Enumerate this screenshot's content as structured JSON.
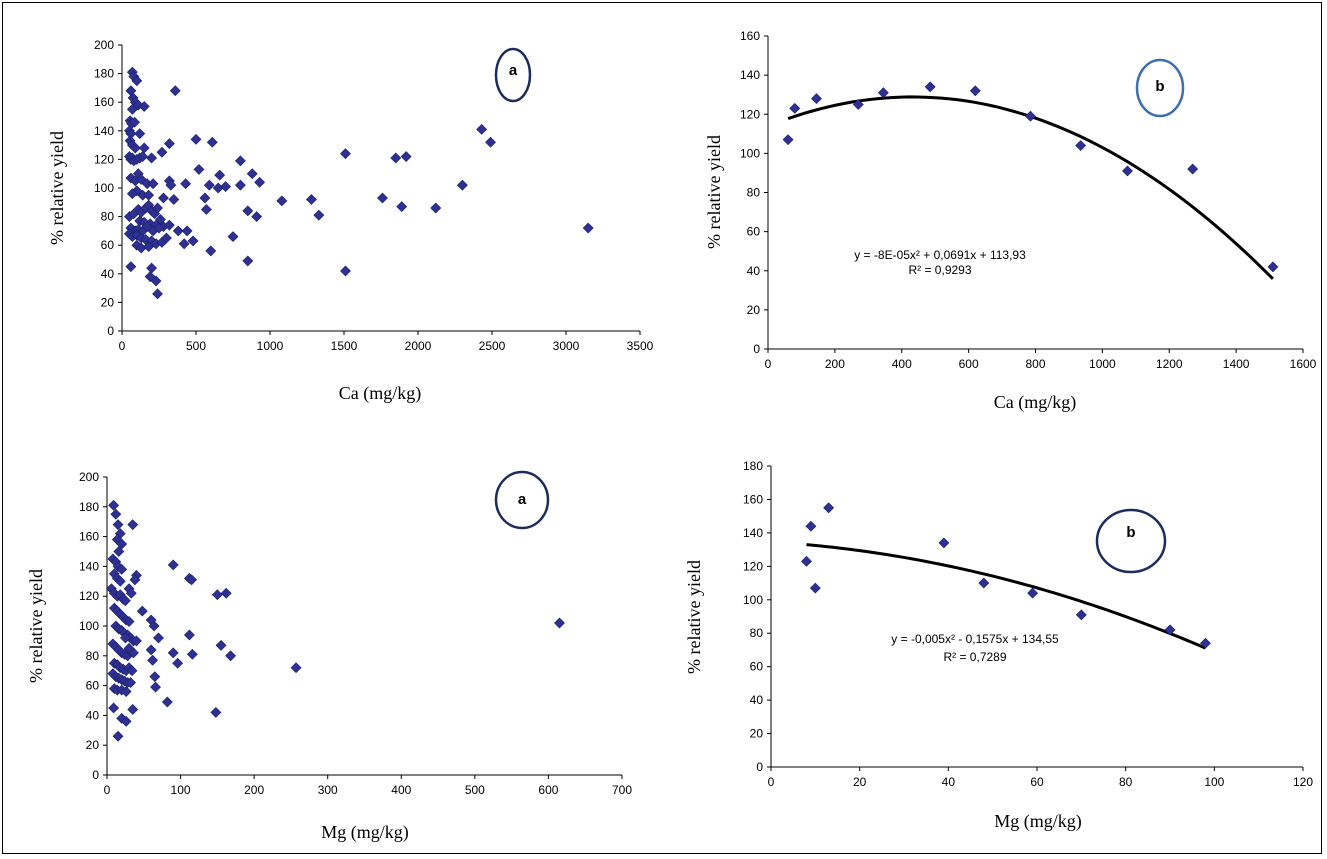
{
  "chart_data": [
    {
      "id": "ca-a",
      "type": "scatter",
      "badge": "a",
      "xlabel": "Ca (mg/kg)",
      "ylabel": "% relative yield",
      "xlim": [
        0,
        3500
      ],
      "ylim": [
        0,
        200
      ],
      "xticks": [
        0,
        500,
        1000,
        1500,
        2000,
        2500,
        3000,
        3500
      ],
      "yticks": [
        0,
        20,
        40,
        60,
        80,
        100,
        120,
        140,
        160,
        180,
        200
      ],
      "marker_color": "#2e3192",
      "points": [
        [
          70,
          181
        ],
        [
          80,
          178
        ],
        [
          100,
          175
        ],
        [
          60,
          168
        ],
        [
          75,
          163
        ],
        [
          90,
          160
        ],
        [
          110,
          158
        ],
        [
          70,
          155
        ],
        [
          150,
          157
        ],
        [
          360,
          168
        ],
        [
          55,
          147
        ],
        [
          65,
          145
        ],
        [
          85,
          146
        ],
        [
          50,
          140
        ],
        [
          60,
          138
        ],
        [
          120,
          138
        ],
        [
          55,
          133
        ],
        [
          70,
          130
        ],
        [
          90,
          128
        ],
        [
          150,
          128
        ],
        [
          50,
          122
        ],
        [
          60,
          120
        ],
        [
          70,
          121
        ],
        [
          80,
          119
        ],
        [
          100,
          120
        ],
        [
          120,
          121
        ],
        [
          140,
          122
        ],
        [
          200,
          121
        ],
        [
          270,
          125
        ],
        [
          320,
          131
        ],
        [
          500,
          134
        ],
        [
          610,
          132
        ],
        [
          110,
          110
        ],
        [
          60,
          107
        ],
        [
          90,
          105
        ],
        [
          130,
          106
        ],
        [
          170,
          103
        ],
        [
          210,
          103
        ],
        [
          320,
          105
        ],
        [
          330,
          102
        ],
        [
          430,
          103
        ],
        [
          590,
          102
        ],
        [
          650,
          100
        ],
        [
          700,
          101
        ],
        [
          520,
          113
        ],
        [
          800,
          119
        ],
        [
          880,
          110
        ],
        [
          930,
          104
        ],
        [
          100,
          98
        ],
        [
          70,
          96
        ],
        [
          140,
          95
        ],
        [
          180,
          95
        ],
        [
          280,
          93
        ],
        [
          350,
          92
        ],
        [
          560,
          93
        ],
        [
          660,
          109
        ],
        [
          1080,
          91
        ],
        [
          1280,
          92
        ],
        [
          1510,
          124
        ],
        [
          1850,
          121
        ],
        [
          1920,
          122
        ],
        [
          2430,
          141
        ],
        [
          2490,
          132
        ],
        [
          2300,
          102
        ],
        [
          1760,
          93
        ],
        [
          1890,
          87
        ],
        [
          2120,
          86
        ],
        [
          800,
          102
        ],
        [
          850,
          84
        ],
        [
          910,
          80
        ],
        [
          1330,
          81
        ],
        [
          570,
          85
        ],
        [
          50,
          80
        ],
        [
          80,
          82
        ],
        [
          110,
          85
        ],
        [
          130,
          83
        ],
        [
          160,
          86
        ],
        [
          180,
          88
        ],
        [
          200,
          84
        ],
        [
          220,
          82
        ],
        [
          240,
          86
        ],
        [
          260,
          78
        ],
        [
          120,
          77
        ],
        [
          150,
          76
        ],
        [
          190,
          75
        ],
        [
          230,
          74
        ],
        [
          280,
          73
        ],
        [
          320,
          74
        ],
        [
          60,
          72
        ],
        [
          90,
          70
        ],
        [
          110,
          71
        ],
        [
          140,
          70
        ],
        [
          170,
          73
        ],
        [
          210,
          70
        ],
        [
          250,
          72
        ],
        [
          380,
          70
        ],
        [
          440,
          70
        ],
        [
          50,
          68
        ],
        [
          70,
          66
        ],
        [
          100,
          67
        ],
        [
          130,
          65
        ],
        [
          160,
          64
        ],
        [
          200,
          63
        ],
        [
          230,
          61
        ],
        [
          270,
          62
        ],
        [
          300,
          65
        ],
        [
          420,
          61
        ],
        [
          480,
          63
        ],
        [
          750,
          66
        ],
        [
          100,
          60
        ],
        [
          130,
          58
        ],
        [
          180,
          59
        ],
        [
          600,
          56
        ],
        [
          850,
          49
        ],
        [
          60,
          45
        ],
        [
          200,
          44
        ],
        [
          190,
          38
        ],
        [
          230,
          35
        ],
        [
          240,
          26
        ],
        [
          1510,
          42
        ],
        [
          3150,
          72
        ]
      ]
    },
    {
      "id": "ca-b",
      "type": "scatter",
      "badge": "b",
      "xlabel": "Ca (mg/kg)",
      "ylabel": "% relative yield",
      "xlim": [
        0,
        1600
      ],
      "ylim": [
        0,
        160
      ],
      "xticks": [
        0,
        200,
        400,
        600,
        800,
        1000,
        1200,
        1400,
        1600
      ],
      "yticks": [
        0,
        20,
        40,
        60,
        80,
        100,
        120,
        140,
        160
      ],
      "marker_color": "#2e3192",
      "points": [
        [
          60,
          107
        ],
        [
          80,
          123
        ],
        [
          145,
          128
        ],
        [
          270,
          125
        ],
        [
          345,
          131
        ],
        [
          485,
          134
        ],
        [
          620,
          132
        ],
        [
          785,
          119
        ],
        [
          935,
          104
        ],
        [
          1075,
          91
        ],
        [
          1270,
          92
        ],
        [
          1510,
          42
        ]
      ],
      "trend": {
        "a": -8e-05,
        "b": 0.0691,
        "c": 113.93,
        "x0": 60,
        "x1": 1510
      },
      "equation": "y = -8E-05x² + 0,0691x + 113,93",
      "r2": "R² = 0,9293"
    },
    {
      "id": "mg-a",
      "type": "scatter",
      "badge": "a",
      "xlabel": "Mg (mg/kg)",
      "ylabel": "% relative yield",
      "xlim": [
        0,
        700
      ],
      "ylim": [
        0,
        200
      ],
      "xticks": [
        0,
        100,
        200,
        300,
        400,
        500,
        600,
        700
      ],
      "yticks": [
        0,
        20,
        40,
        60,
        80,
        100,
        120,
        140,
        160,
        180,
        200
      ],
      "marker_color": "#2e3192",
      "points": [
        [
          9,
          181
        ],
        [
          12,
          175
        ],
        [
          15,
          168
        ],
        [
          18,
          162
        ],
        [
          14,
          158
        ],
        [
          20,
          155
        ],
        [
          16,
          150
        ],
        [
          35,
          168
        ],
        [
          8,
          145
        ],
        [
          12,
          143
        ],
        [
          15,
          140
        ],
        [
          20,
          138
        ],
        [
          10,
          135
        ],
        [
          14,
          132
        ],
        [
          18,
          130
        ],
        [
          40,
          134
        ],
        [
          38,
          131
        ],
        [
          6,
          125
        ],
        [
          10,
          122
        ],
        [
          14,
          120
        ],
        [
          18,
          121
        ],
        [
          22,
          118
        ],
        [
          25,
          117
        ],
        [
          30,
          125
        ],
        [
          33,
          122
        ],
        [
          90,
          141
        ],
        [
          112,
          132
        ],
        [
          115,
          131
        ],
        [
          150,
          121
        ],
        [
          162,
          122
        ],
        [
          10,
          112
        ],
        [
          14,
          110
        ],
        [
          18,
          108
        ],
        [
          22,
          106
        ],
        [
          26,
          104
        ],
        [
          30,
          103
        ],
        [
          12,
          100
        ],
        [
          16,
          98
        ],
        [
          20,
          97
        ],
        [
          24,
          95
        ],
        [
          28,
          94
        ],
        [
          32,
          92
        ],
        [
          36,
          90
        ],
        [
          40,
          90
        ],
        [
          48,
          110
        ],
        [
          60,
          104
        ],
        [
          64,
          100
        ],
        [
          70,
          92
        ],
        [
          112,
          94
        ],
        [
          155,
          87
        ],
        [
          615,
          102
        ],
        [
          8,
          88
        ],
        [
          12,
          86
        ],
        [
          16,
          84
        ],
        [
          20,
          82
        ],
        [
          24,
          81
        ],
        [
          28,
          80
        ],
        [
          32,
          83
        ],
        [
          36,
          82
        ],
        [
          90,
          82
        ],
        [
          116,
          81
        ],
        [
          168,
          80
        ],
        [
          10,
          75
        ],
        [
          14,
          74
        ],
        [
          18,
          72
        ],
        [
          22,
          71
        ],
        [
          26,
          70
        ],
        [
          30,
          72
        ],
        [
          34,
          70
        ],
        [
          62,
          77
        ],
        [
          96,
          75
        ],
        [
          257,
          72
        ],
        [
          8,
          68
        ],
        [
          12,
          66
        ],
        [
          16,
          65
        ],
        [
          20,
          64
        ],
        [
          24,
          63
        ],
        [
          28,
          62
        ],
        [
          32,
          62
        ],
        [
          65,
          66
        ],
        [
          66,
          59
        ],
        [
          10,
          58
        ],
        [
          14,
          57
        ],
        [
          20,
          57
        ],
        [
          26,
          56
        ],
        [
          82,
          49
        ],
        [
          9,
          45
        ],
        [
          35,
          44
        ],
        [
          20,
          38
        ],
        [
          26,
          36
        ],
        [
          15,
          26
        ],
        [
          148,
          42
        ],
        [
          25,
          92
        ],
        [
          30,
          85
        ],
        [
          60,
          84
        ]
      ]
    },
    {
      "id": "mg-b",
      "type": "scatter",
      "badge": "b",
      "xlabel": "Mg (mg/kg)",
      "ylabel": "% relative yield",
      "xlim": [
        0,
        120
      ],
      "ylim": [
        0,
        180
      ],
      "xticks": [
        0,
        20,
        40,
        60,
        80,
        100,
        120
      ],
      "yticks": [
        0,
        20,
        40,
        60,
        80,
        100,
        120,
        140,
        160,
        180
      ],
      "marker_color": "#2e3192",
      "points": [
        [
          8,
          123
        ],
        [
          9,
          144
        ],
        [
          10,
          107
        ],
        [
          13,
          155
        ],
        [
          39,
          134
        ],
        [
          48,
          110
        ],
        [
          59,
          104
        ],
        [
          70,
          91
        ],
        [
          90,
          82
        ],
        [
          98,
          74
        ]
      ],
      "trend": {
        "a": -0.005,
        "b": -0.1575,
        "c": 134.55,
        "x0": 8,
        "x1": 98
      },
      "equation": "y = -0,005x² - 0,1575x + 134,55",
      "r2": "R² = 0,7289"
    }
  ]
}
